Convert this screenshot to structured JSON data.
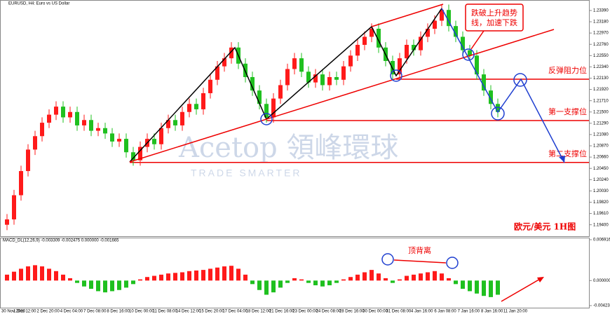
{
  "chart_data": {
    "type": "candlestick",
    "title": "EURUSD, H4: Euro vs US Dollar",
    "xlabels": [
      "30 Nov 2020",
      "1 Dec 12:00",
      "2 Dec 20:00",
      "4 Dec 04:00",
      "7 Dec 08:00",
      "8 Dec 16:00",
      "10 Dec 00:00",
      "11 Dec 08:00",
      "14 Dec 12:00",
      "15 Dec 20:00",
      "17 Dec 04:00",
      "18 Dec 12:00",
      "21 Dec 16:00",
      "23 Dec 00:00",
      "24 Dec 08:00",
      "28 Dec 16:00",
      "30 Dec 00:00",
      "31 Dec 08:00",
      "4 Jan 16:00",
      "6 Jan 08:00",
      "7 Jan 16:00",
      "8 Jan 16:00",
      "11 Jan 20:00"
    ],
    "open": [
      1.194,
      1.195,
      1.1995,
      1.204,
      1.208,
      1.2105,
      1.213,
      1.2145,
      1.216,
      1.214,
      1.215,
      1.2125,
      1.2135,
      1.2115,
      1.212,
      1.211,
      1.2095,
      1.21,
      1.2075,
      1.206,
      1.2085,
      1.21,
      1.209,
      1.212,
      1.2135,
      1.2125,
      1.215,
      1.2165,
      1.2155,
      1.2185,
      1.221,
      1.2235,
      1.225,
      1.227,
      1.224,
      1.2215,
      1.219,
      1.2165,
      1.214,
      1.2175,
      1.22,
      1.223,
      1.225,
      1.2225,
      1.2205,
      1.222,
      1.22,
      1.2215,
      1.221,
      1.2235,
      1.2255,
      1.2275,
      1.229,
      1.2305,
      1.227,
      1.2245,
      1.222,
      1.225,
      1.2275,
      1.2265,
      1.229,
      1.2305,
      1.232,
      1.234,
      1.231,
      1.229,
      1.2265,
      1.2255,
      1.222,
      1.219,
      1.2165
    ],
    "high": [
      1.196,
      1.2005,
      1.205,
      1.209,
      1.2115,
      1.214,
      1.2155,
      1.217,
      1.217,
      1.216,
      1.216,
      1.2145,
      1.2145,
      1.213,
      1.213,
      1.212,
      1.211,
      1.211,
      1.2085,
      1.2095,
      1.211,
      1.211,
      1.213,
      1.2145,
      1.2145,
      1.216,
      1.2175,
      1.2175,
      1.2195,
      1.222,
      1.2245,
      1.226,
      1.228,
      1.228,
      1.225,
      1.2225,
      1.22,
      1.2175,
      1.2185,
      1.221,
      1.224,
      1.226,
      1.226,
      1.2235,
      1.223,
      1.223,
      1.2225,
      1.2225,
      1.2245,
      1.2265,
      1.2285,
      1.23,
      1.2315,
      1.2315,
      1.228,
      1.2255,
      1.226,
      1.2285,
      1.2285,
      1.23,
      1.2315,
      1.233,
      1.235,
      1.235,
      1.232,
      1.23,
      1.2275,
      1.2265,
      1.223,
      1.22,
      1.2175
    ],
    "low": [
      1.193,
      1.194,
      1.1985,
      1.203,
      1.207,
      1.2095,
      1.212,
      1.2135,
      1.213,
      1.213,
      1.2115,
      1.2115,
      1.2105,
      1.2105,
      1.21,
      1.2085,
      1.2085,
      1.2065,
      1.205,
      1.205,
      1.2075,
      1.208,
      1.208,
      1.211,
      1.2115,
      1.2115,
      1.214,
      1.2145,
      1.2145,
      1.2175,
      1.22,
      1.2225,
      1.224,
      1.223,
      1.2205,
      1.218,
      1.2155,
      1.213,
      1.213,
      1.2165,
      1.219,
      1.222,
      1.2215,
      1.2195,
      1.2195,
      1.219,
      1.219,
      1.22,
      1.22,
      1.2225,
      1.2245,
      1.2265,
      1.228,
      1.226,
      1.2235,
      1.221,
      1.221,
      1.224,
      1.2255,
      1.2255,
      1.228,
      1.2295,
      1.231,
      1.23,
      1.228,
      1.2255,
      1.2245,
      1.221,
      1.218,
      1.2155,
      1.214
    ],
    "close": [
      1.195,
      1.1995,
      1.204,
      1.208,
      1.2105,
      1.213,
      1.2145,
      1.216,
      1.214,
      1.215,
      1.2125,
      1.2135,
      1.2115,
      1.212,
      1.211,
      1.2095,
      1.21,
      1.2075,
      1.206,
      1.2085,
      1.21,
      1.209,
      1.212,
      1.2135,
      1.2125,
      1.215,
      1.2165,
      1.2155,
      1.2185,
      1.221,
      1.2235,
      1.225,
      1.227,
      1.224,
      1.2215,
      1.219,
      1.2165,
      1.214,
      1.2175,
      1.22,
      1.223,
      1.225,
      1.2225,
      1.2205,
      1.222,
      1.22,
      1.2215,
      1.221,
      1.2235,
      1.2255,
      1.2275,
      1.229,
      1.2305,
      1.227,
      1.2245,
      1.222,
      1.225,
      1.2275,
      1.2265,
      1.229,
      1.2305,
      1.232,
      1.234,
      1.231,
      1.229,
      1.2265,
      1.2255,
      1.222,
      1.219,
      1.2165,
      1.215
    ],
    "up_color": "#ff1a1a",
    "down_color": "#1fc01f",
    "ylim": [
      1.192,
      1.2352
    ],
    "yticks": [
      {
        "value": 1.2339,
        "label": "1.23390"
      },
      {
        "value": 1.2318,
        "label": "1.23180"
      },
      {
        "value": 1.2297,
        "label": "1.22970"
      },
      {
        "value": 1.2276,
        "label": "1.22760"
      },
      {
        "value": 1.2255,
        "label": "1.22550"
      },
      {
        "value": 1.2234,
        "label": "1.22340"
      },
      {
        "value": 1.2213,
        "label": "1.22130"
      },
      {
        "value": 1.2192,
        "label": "1.21920"
      },
      {
        "value": 1.2171,
        "label": "1.21710"
      },
      {
        "value": 1.215,
        "label": "1.21500"
      },
      {
        "value": 1.2129,
        "label": "1.21290"
      },
      {
        "value": 1.2108,
        "label": "1.21080"
      },
      {
        "value": 1.2087,
        "label": "1.20870"
      },
      {
        "value": 1.2066,
        "label": "1.20660"
      },
      {
        "value": 1.2045,
        "label": "1.20450"
      },
      {
        "value": 1.2024,
        "label": "1.20240"
      },
      {
        "value": 1.2003,
        "label": "1.20030"
      },
      {
        "value": 1.1982,
        "label": "1.19820"
      },
      {
        "value": 1.1961,
        "label": "1.19610"
      },
      {
        "value": 1.194,
        "label": "1.19400"
      }
    ],
    "levels": [
      {
        "value": 1.2211,
        "label": "反弹阻力位"
      },
      {
        "value": 1.2134,
        "label": "第一支撑位"
      },
      {
        "value": 1.2056,
        "label": "第二支撑位"
      }
    ],
    "annotations": {
      "callout": [
        "跌破上升趋势",
        "线，加速下跌"
      ],
      "chart_label": "欧元/美元 1H图",
      "divergence": "顶背离"
    },
    "watermark": {
      "brand": "Acetop 領峰環球",
      "tagline": "TRADE SMARTER"
    },
    "macd": {
      "label": "MACD_DL(12,26,9) -0.003309 -0.002475 0.000000 -0.001665",
      "values": [
        0.001,
        0.0015,
        0.002,
        0.0024,
        0.0026,
        0.0024,
        0.002,
        0.0016,
        0.001,
        0.0004,
        -0.0004,
        -0.001,
        -0.0014,
        -0.0018,
        -0.002,
        -0.0018,
        -0.0016,
        -0.0012,
        -0.0006,
        0.0002,
        0.0006,
        0.0008,
        0.001,
        0.0012,
        0.0013,
        0.0014,
        0.0016,
        0.0017,
        0.0018,
        0.002,
        0.0022,
        0.0024,
        0.0025,
        0.002,
        0.001,
        -0.0006,
        -0.0016,
        -0.0024,
        -0.002,
        -0.0012,
        -0.0004,
        0.0004,
        0.0002,
        -0.0004,
        -0.0008,
        -0.001,
        -0.0008,
        -0.0004,
        0.0002,
        0.0006,
        0.001,
        0.0014,
        0.0018,
        0.0012,
        0.0004,
        -0.0004,
        0.0002,
        0.0008,
        0.001,
        0.0012,
        0.0014,
        0.0016,
        0.0012,
        0.0004,
        -0.0006,
        -0.0014,
        -0.0018,
        -0.0022,
        -0.0026,
        -0.0028,
        -0.0024
      ],
      "ylim": [
        -0.004238,
        0.006916
      ],
      "yticks": [
        0.006916,
        {
          "value": 0,
          "label": "0.000000"
        },
        -0.004238
      ]
    }
  }
}
